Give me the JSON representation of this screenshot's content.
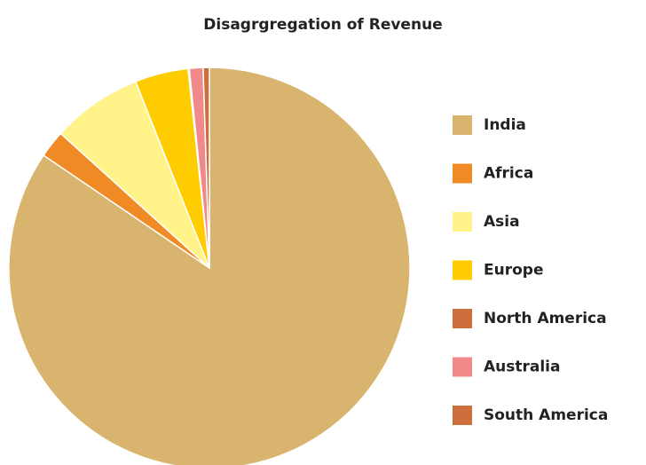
{
  "chart_data": {
    "type": "pie",
    "title": "Disagrgregation of Revenue",
    "categories": [
      "India",
      "Africa",
      "Asia",
      "Europe",
      "North America",
      "Australia",
      "South America"
    ],
    "values": [
      84.5,
      2.2,
      7.3,
      4.3,
      0.1,
      1.1,
      0.5
    ],
    "colors": [
      "#d8b46e",
      "#f08a24",
      "#fff38a",
      "#ffcc00",
      "#cc6f3c",
      "#f08a8a",
      "#cc6f3c"
    ],
    "legend": "right"
  }
}
